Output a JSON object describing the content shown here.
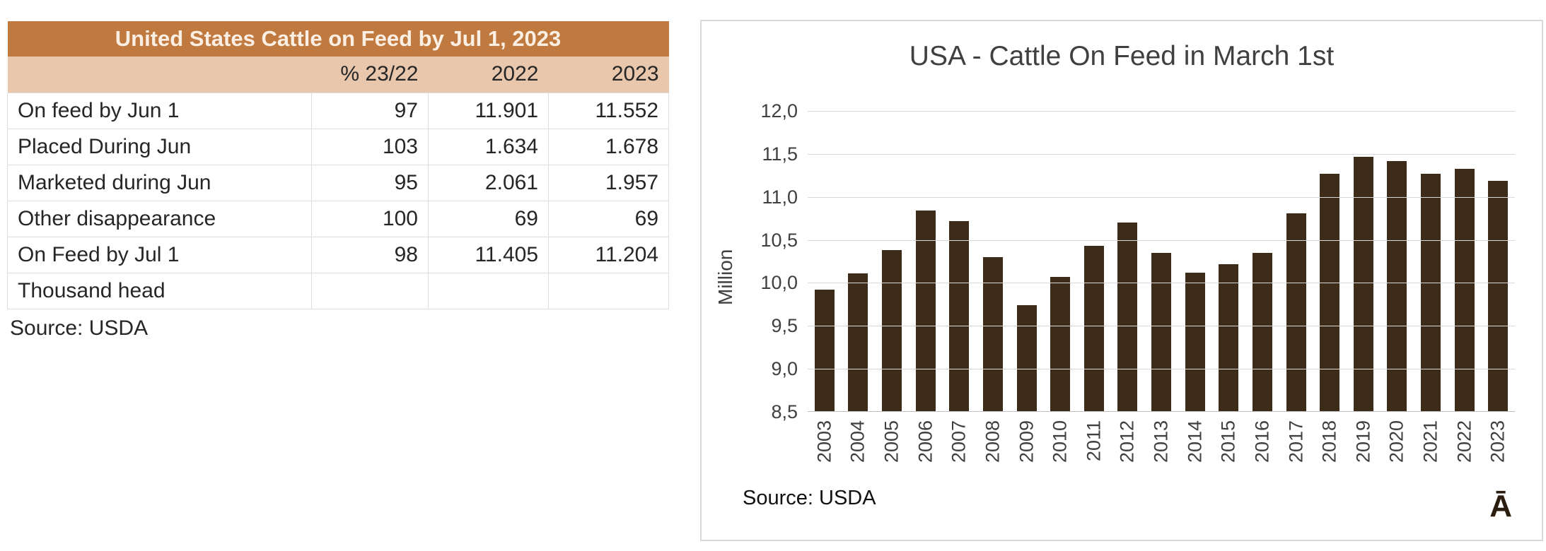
{
  "table": {
    "title": "United States Cattle on Feed by Jul 1, 2023",
    "columns": [
      "",
      "% 23/22",
      "2022",
      "2023"
    ],
    "rows": [
      [
        "On feed by Jun 1",
        "97",
        "11.901",
        "11.552"
      ],
      [
        "Placed During Jun",
        "103",
        "1.634",
        "1.678"
      ],
      [
        "Marketed during Jun",
        "95",
        "2.061",
        "1.957"
      ],
      [
        "Other disappearance",
        "100",
        "69",
        "69"
      ],
      [
        "On Feed by Jul 1",
        "98",
        "11.405",
        "11.204"
      ],
      [
        "Thousand head",
        "",
        "",
        ""
      ]
    ],
    "source": "Source: USDA"
  },
  "chart": {
    "title": "USA - Cattle On Feed in March 1st",
    "ylabel": "Million",
    "source": "Source: USDA",
    "watermark": "Ā"
  },
  "chart_data": {
    "type": "bar",
    "title": "USA - Cattle On Feed in March 1st",
    "xlabel": "",
    "ylabel": "Million",
    "categories": [
      "2003",
      "2004",
      "2005",
      "2006",
      "2007",
      "2008",
      "2009",
      "2010",
      "2011",
      "2012",
      "2013",
      "2014",
      "2015",
      "2016",
      "2017",
      "2018",
      "2019",
      "2020",
      "2021",
      "2022",
      "2023"
    ],
    "values": [
      9.92,
      10.11,
      10.38,
      10.84,
      10.72,
      10.3,
      9.74,
      10.07,
      10.43,
      10.7,
      10.35,
      10.12,
      10.22,
      10.35,
      10.81,
      11.27,
      11.47,
      11.42,
      11.27,
      11.33,
      11.19
    ],
    "ylim": [
      8.5,
      12.0
    ],
    "yticks": [
      8.5,
      9.0,
      9.5,
      10.0,
      10.5,
      11.0,
      11.5,
      12.0
    ],
    "ytick_labels": [
      "8,5",
      "9,0",
      "9,5",
      "10,0",
      "10,5",
      "11,0",
      "11,5",
      "12,0"
    ],
    "grid": true,
    "legend": false,
    "source": "Source: USDA"
  },
  "colors": {
    "table_title_bg": "#c0793f",
    "table_title_text": "#fbefe4",
    "table_header_bg": "#e8c7ad",
    "table_border": "#dedede",
    "text_dark": "#262626",
    "panel_border": "#d9d9d9",
    "chart_text": "#404040",
    "gridline": "#d9d9d9",
    "bar": "#3d2b1a"
  }
}
